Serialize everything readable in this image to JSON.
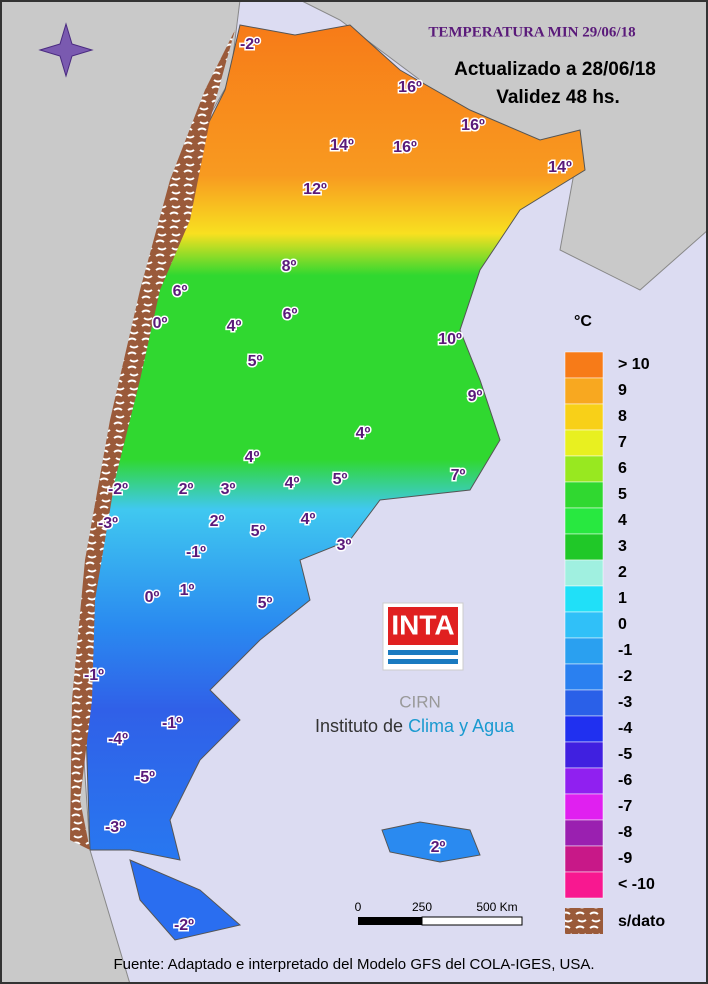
{
  "header": {
    "title": "TEMPERATURA MIN 29/06/18",
    "updated": "Actualizado a 28/06/18",
    "validity": "Validez 48 hs."
  },
  "legend": {
    "unit": "°C",
    "no_data": "s/dato",
    "items": [
      {
        "label": "> 10",
        "color": "#f77b18"
      },
      {
        "label": "9",
        "color": "#f8a820"
      },
      {
        "label": "8",
        "color": "#f8d018"
      },
      {
        "label": "7",
        "color": "#e8f020"
      },
      {
        "label": "6",
        "color": "#98e820"
      },
      {
        "label": "5",
        "color": "#30d830"
      },
      {
        "label": "4",
        "color": "#28e840"
      },
      {
        "label": "3",
        "color": "#20c828"
      },
      {
        "label": "2",
        "color": "#a0f0e0"
      },
      {
        "label": "1",
        "color": "#20e0f8"
      },
      {
        "label": "0",
        "color": "#30c0f8"
      },
      {
        "label": "-1",
        "color": "#2aa0f0"
      },
      {
        "label": "-2",
        "color": "#2a80f0"
      },
      {
        "label": "-3",
        "color": "#2a60e8"
      },
      {
        "label": "-4",
        "color": "#2030f0"
      },
      {
        "label": "-5",
        "color": "#4020e0"
      },
      {
        "label": "-6",
        "color": "#9020f0"
      },
      {
        "label": "-7",
        "color": "#e020f0"
      },
      {
        "label": "-8",
        "color": "#9a20b0"
      },
      {
        "label": "-9",
        "color": "#c81888"
      },
      {
        "label": "< -10",
        "color": "#f81890"
      }
    ]
  },
  "scale": {
    "ticks": [
      "0",
      "250",
      "500 Km"
    ]
  },
  "logo": {
    "name": "INTA",
    "center": "CIRN",
    "institute_prefix": "Instituto de ",
    "institute_highlight": "Clima y Agua"
  },
  "footer": "Fuente: Adaptado e interpretado del Modelo GFS del COLA-IGES, USA.",
  "map": {
    "labels": [
      "-2º",
      "16º",
      "16º",
      "14º",
      "16º",
      "14º",
      "12º",
      "8º",
      "6º",
      "6º",
      "0º",
      "4º",
      "10º",
      "5º",
      "9º",
      "4º",
      "4º",
      "7º",
      "5º",
      "4º",
      "-2º",
      "2º",
      "3º",
      "-3º",
      "2º",
      "4º",
      "5º",
      "3º",
      "-1º",
      "0º",
      "1º",
      "5º",
      "-1º",
      "-1º",
      "-4º",
      "-5º",
      "-3º",
      "2º",
      "-2º"
    ]
  }
}
